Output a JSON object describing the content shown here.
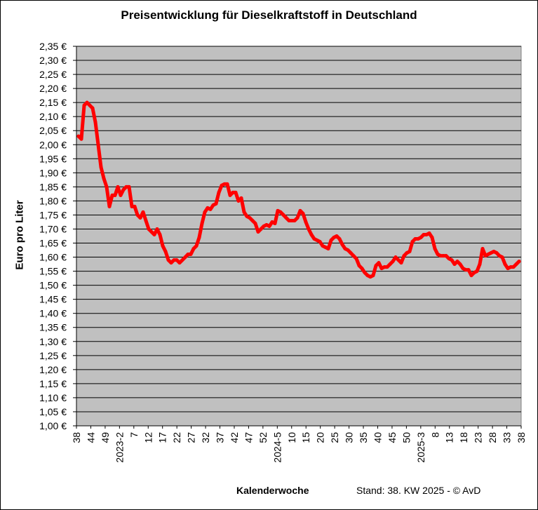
{
  "chart_data": {
    "type": "line",
    "title": "Preisentwicklung für Dieselkraftstoff in Deutschland",
    "ylabel": "Euro pro Liter",
    "xlabel": "Kalenderwoche",
    "footer": "Stand: 38. KW 2025 - © AvD",
    "ylim": [
      1.0,
      2.35
    ],
    "y_ticks": [
      "1,00 €",
      "1,05 €",
      "1,10 €",
      "1,15 €",
      "1,20 €",
      "1,25 €",
      "1,30 €",
      "1,35 €",
      "1,40 €",
      "1,45 €",
      "1,50 €",
      "1,55 €",
      "1,60 €",
      "1,65 €",
      "1,70 €",
      "1,75 €",
      "1,80 €",
      "1,85 €",
      "1,90 €",
      "1,95 €",
      "2,00 €",
      "2,05 €",
      "2,10 €",
      "2,15 €",
      "2,20 €",
      "2,25 €",
      "2,30 €",
      "2,35 €"
    ],
    "x_tick_labels": [
      "38",
      "44",
      "49",
      "2023-2",
      "7",
      "12",
      "17",
      "22",
      "27",
      "32",
      "37",
      "42",
      "47",
      "52",
      "2024-5",
      "10",
      "15",
      "20",
      "25",
      "30",
      "35",
      "40",
      "45",
      "50",
      "2025-3",
      "8",
      "13",
      "18",
      "23",
      "28",
      "33",
      "38"
    ],
    "grid": true,
    "series_color": "#ff0000",
    "series": [
      {
        "values": [
          2.03,
          2.02,
          2.14,
          2.15,
          2.14,
          2.13,
          2.08,
          2.0,
          1.92,
          1.88,
          1.85,
          1.78,
          1.82,
          1.82,
          1.85,
          1.82,
          1.84,
          1.85,
          1.85,
          1.78,
          1.78,
          1.75,
          1.74,
          1.76,
          1.73,
          1.7,
          1.69,
          1.68,
          1.7,
          1.68,
          1.64,
          1.62,
          1.59,
          1.58,
          1.59,
          1.59,
          1.58,
          1.59,
          1.6,
          1.61,
          1.61,
          1.63,
          1.64,
          1.67,
          1.72,
          1.76,
          1.775,
          1.77,
          1.785,
          1.79,
          1.83,
          1.855,
          1.86,
          1.86,
          1.82,
          1.83,
          1.83,
          1.8,
          1.81,
          1.76,
          1.745,
          1.74,
          1.73,
          1.72,
          1.69,
          1.7,
          1.71,
          1.715,
          1.71,
          1.725,
          1.72,
          1.765,
          1.76,
          1.75,
          1.74,
          1.73,
          1.73,
          1.73,
          1.74,
          1.765,
          1.755,
          1.725,
          1.7,
          1.68,
          1.665,
          1.66,
          1.655,
          1.64,
          1.635,
          1.63,
          1.66,
          1.67,
          1.675,
          1.665,
          1.645,
          1.63,
          1.625,
          1.615,
          1.605,
          1.595,
          1.57,
          1.56,
          1.545,
          1.535,
          1.53,
          1.535,
          1.57,
          1.58,
          1.56,
          1.565,
          1.565,
          1.575,
          1.585,
          1.6,
          1.59,
          1.58,
          1.605,
          1.615,
          1.62,
          1.655,
          1.665,
          1.665,
          1.67,
          1.68,
          1.68,
          1.685,
          1.67,
          1.63,
          1.61,
          1.605,
          1.605,
          1.605,
          1.595,
          1.59,
          1.575,
          1.585,
          1.575,
          1.56,
          1.555,
          1.555,
          1.535,
          1.545,
          1.55,
          1.575,
          1.63,
          1.605,
          1.61,
          1.615,
          1.62,
          1.615,
          1.605,
          1.6,
          1.575,
          1.56,
          1.565,
          1.565,
          1.575,
          1.585
        ]
      }
    ]
  }
}
